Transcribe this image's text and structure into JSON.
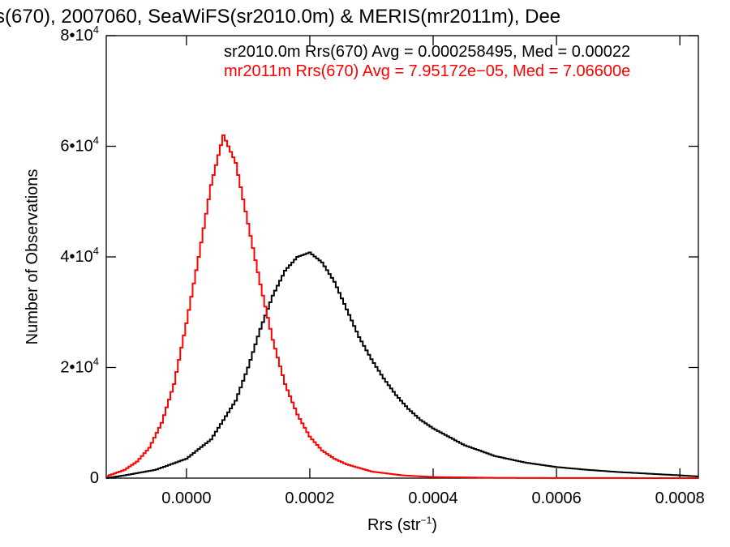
{
  "chart_data": {
    "type": "line",
    "title": "s(670), 2007060, SeaWiFS(sr2010.0m) & MERIS(mr2011m), Dee",
    "xlabel": {
      "base": "Rrs (str",
      "sup": "−1",
      "tail": ")"
    },
    "ylabel": "Number of Observations",
    "xlim": [
      -0.00013,
      0.00083
    ],
    "ylim": [
      0,
      80000
    ],
    "x_ticks": [
      {
        "value": 0.0,
        "label": "0.0000"
      },
      {
        "value": 0.0002,
        "label": "0.0002"
      },
      {
        "value": 0.0004,
        "label": "0.0004"
      },
      {
        "value": 0.0006,
        "label": "0.0006"
      },
      {
        "value": 0.0008,
        "label": "0.0008"
      }
    ],
    "y_ticks": [
      {
        "value": 0,
        "label": "0",
        "exp": ""
      },
      {
        "value": 20000,
        "label": "2•10",
        "exp": "4"
      },
      {
        "value": 40000,
        "label": "4•10",
        "exp": "4"
      },
      {
        "value": 60000,
        "label": "6•10",
        "exp": "4"
      },
      {
        "value": 80000,
        "label": "8•10",
        "exp": "4"
      }
    ],
    "grid": false,
    "legend_position": "top-right",
    "series": [
      {
        "name": "sr2010.0m Rrs(670) Avg = 0.000258495, Med = 0.00022",
        "color": "#000000",
        "points": [
          [
            -0.00013,
            0
          ],
          [
            -0.0001,
            500
          ],
          [
            -5e-05,
            1500
          ],
          [
            0.0,
            3500
          ],
          [
            4e-05,
            7000
          ],
          [
            8e-05,
            14000
          ],
          [
            0.0001,
            20000
          ],
          [
            0.00012,
            27000
          ],
          [
            0.00014,
            33000
          ],
          [
            0.00016,
            37500
          ],
          [
            0.00018,
            40000
          ],
          [
            0.0002,
            40800
          ],
          [
            0.00022,
            39000
          ],
          [
            0.00024,
            35500
          ],
          [
            0.00026,
            30500
          ],
          [
            0.00028,
            25500
          ],
          [
            0.0003,
            21500
          ],
          [
            0.00032,
            18000
          ],
          [
            0.00034,
            15000
          ],
          [
            0.00036,
            12500
          ],
          [
            0.00038,
            10500
          ],
          [
            0.0004,
            9000
          ],
          [
            0.00045,
            6000
          ],
          [
            0.0005,
            4000
          ],
          [
            0.00055,
            2800
          ],
          [
            0.0006,
            2000
          ],
          [
            0.00065,
            1500
          ],
          [
            0.0007,
            1100
          ],
          [
            0.00075,
            800
          ],
          [
            0.0008,
            500
          ],
          [
            0.00083,
            300
          ]
        ]
      },
      {
        "name": "mr2011m Rrs(670) Avg = 7.95172e−05, Med = 7.06600e",
        "color": "#ff0000",
        "points": [
          [
            -0.00013,
            300
          ],
          [
            -0.0001,
            1500
          ],
          [
            -8e-05,
            3000
          ],
          [
            -6e-05,
            5500
          ],
          [
            -4e-05,
            10000
          ],
          [
            -2e-05,
            17000
          ],
          [
            0.0,
            28000
          ],
          [
            2e-05,
            40000
          ],
          [
            4e-05,
            53000
          ],
          [
            6e-05,
            62000
          ],
          [
            8e-05,
            57000
          ],
          [
            0.0001,
            46000
          ],
          [
            0.00012,
            35000
          ],
          [
            0.00014,
            25000
          ],
          [
            0.00016,
            17000
          ],
          [
            0.00018,
            11500
          ],
          [
            0.0002,
            7500
          ],
          [
            0.00022,
            5000
          ],
          [
            0.00024,
            3500
          ],
          [
            0.00026,
            2500
          ],
          [
            0.0003,
            1200
          ],
          [
            0.00035,
            500
          ],
          [
            0.0004,
            200
          ],
          [
            0.0005,
            60
          ],
          [
            0.0006,
            20
          ],
          [
            0.00083,
            0
          ]
        ]
      }
    ]
  }
}
